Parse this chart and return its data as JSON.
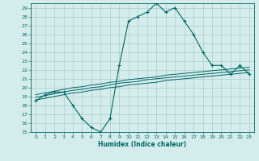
{
  "xlabel": "Humidex (Indice chaleur)",
  "background_color": "#d4edec",
  "line_color": "#006666",
  "grid_color": "#aacccc",
  "xlim": [
    -0.5,
    23.5
  ],
  "ylim": [
    15,
    29.5
  ],
  "yticks": [
    15,
    16,
    17,
    18,
    19,
    20,
    21,
    22,
    23,
    24,
    25,
    26,
    27,
    28,
    29
  ],
  "xticks": [
    0,
    1,
    2,
    3,
    4,
    5,
    6,
    7,
    8,
    9,
    10,
    11,
    12,
    13,
    14,
    15,
    16,
    17,
    18,
    19,
    20,
    21,
    22,
    23
  ],
  "main_y": [
    18.5,
    19.2,
    19.5,
    19.5,
    18.0,
    16.5,
    15.5,
    15.0,
    16.5,
    22.5,
    27.5,
    28.0,
    28.5,
    29.5,
    28.5,
    29.0,
    27.5,
    26.0,
    24.0,
    22.5,
    22.5,
    21.5,
    22.5,
    21.5
  ],
  "line1_y": [
    18.6,
    18.8,
    19.0,
    19.2,
    19.4,
    19.5,
    19.7,
    19.8,
    20.0,
    20.1,
    20.3,
    20.4,
    20.5,
    20.6,
    20.8,
    20.9,
    21.0,
    21.1,
    21.2,
    21.3,
    21.4,
    21.5,
    21.6,
    21.7
  ],
  "line2_y": [
    18.9,
    19.1,
    19.3,
    19.5,
    19.7,
    19.8,
    20.0,
    20.1,
    20.3,
    20.5,
    20.6,
    20.7,
    20.9,
    21.0,
    21.1,
    21.2,
    21.3,
    21.4,
    21.5,
    21.6,
    21.7,
    21.8,
    21.9,
    22.0
  ],
  "line3_y": [
    19.2,
    19.4,
    19.6,
    19.8,
    20.0,
    20.1,
    20.3,
    20.4,
    20.6,
    20.7,
    20.9,
    21.0,
    21.1,
    21.2,
    21.4,
    21.5,
    21.6,
    21.7,
    21.8,
    21.9,
    22.0,
    22.1,
    22.2,
    22.3
  ]
}
